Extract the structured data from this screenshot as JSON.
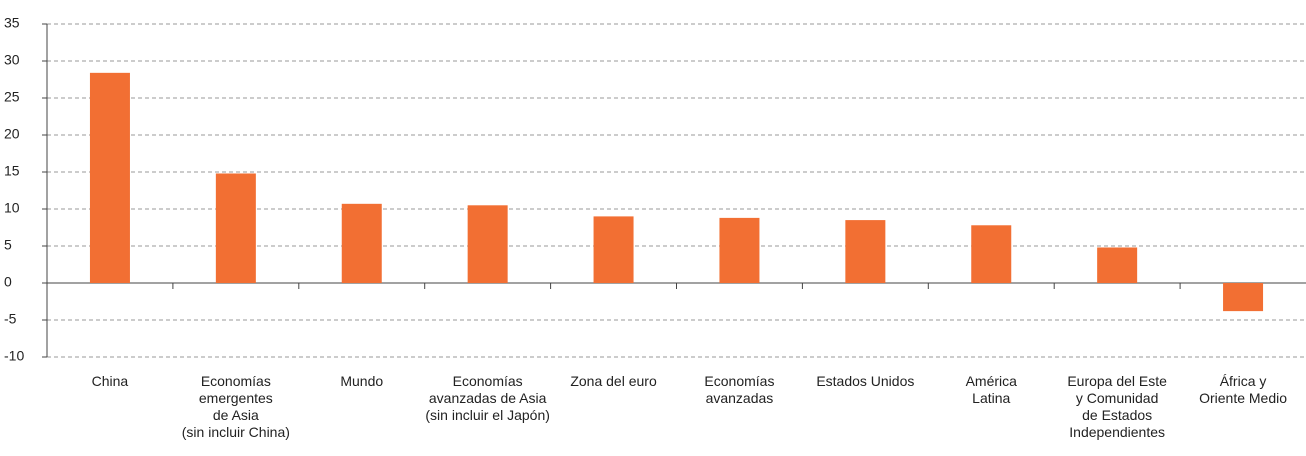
{
  "chart_data": {
    "type": "bar",
    "categories": [
      "China",
      "Economías\nemergentes\nde Asia\n(sin incluir China)",
      "Mundo",
      "Economías\navanzadas de Asia\n(sin incluir el Japón)",
      "Zona del euro",
      "Economías\navanzadas",
      "Estados Unidos",
      "América\nLatina",
      "Europa del Este\ny Comunidad\nde Estados\nIndependientes",
      "África y\nOriente Medio"
    ],
    "values": [
      28.4,
      14.8,
      10.7,
      10.5,
      9.0,
      8.8,
      8.5,
      7.8,
      4.8,
      -3.8
    ],
    "color": "#f26f33",
    "ylim": [
      -10,
      35
    ],
    "yticks": [
      -10,
      -5,
      0,
      5,
      10,
      15,
      20,
      25,
      30,
      35
    ],
    "grid": true
  }
}
